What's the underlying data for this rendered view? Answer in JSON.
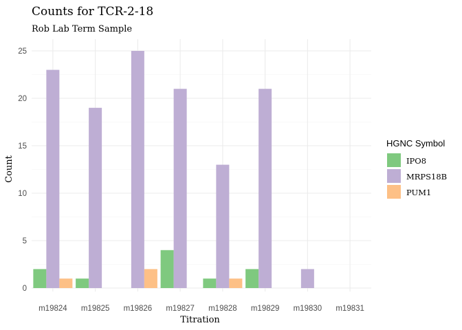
{
  "chart_data": {
    "type": "bar",
    "title": "Counts for TCR-2-18",
    "subtitle": "Rob Lab Term Sample",
    "xlabel": "Titration",
    "ylabel": "Count",
    "ylim": [
      0,
      26
    ],
    "yticks": [
      0,
      5,
      10,
      15,
      20,
      25
    ],
    "grid": true,
    "legend_title": "HGNC Symbol",
    "legend_position": "right",
    "categories": [
      "m19824",
      "m19825",
      "m19826",
      "m19827",
      "m19828",
      "m19829",
      "m19830",
      "m19831"
    ],
    "series": [
      {
        "name": "IPO8",
        "color": "#7fc97f",
        "values": [
          2,
          1,
          null,
          4,
          1,
          2,
          null,
          null
        ]
      },
      {
        "name": "MRPS18B",
        "color": "#beaed4",
        "values": [
          23,
          19,
          25,
          21,
          13,
          21,
          2,
          null
        ]
      },
      {
        "name": "PUM1",
        "color": "#fdc086",
        "values": [
          1,
          null,
          2,
          null,
          1,
          null,
          null,
          null
        ]
      }
    ]
  }
}
